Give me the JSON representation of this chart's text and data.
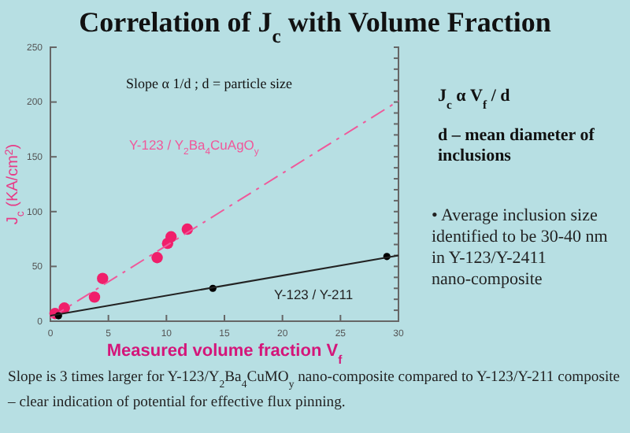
{
  "chart_data": {
    "type": "scatter",
    "title": "Correlation of J$_{c}$ with Volume Fraction",
    "xlabel": "Measured volume fraction  V$_{f}$",
    "ylabel": "J$_{c}$ (KA/cm$^{2}$)",
    "xlim": [
      0,
      30
    ],
    "xticks": [
      0,
      5,
      10,
      15,
      20,
      25,
      30
    ],
    "ylim": [
      0,
      250
    ],
    "yticks": [
      0,
      50,
      100,
      150,
      200,
      250
    ],
    "grid": false,
    "marker": "circle",
    "series": [
      {
        "color": "#f01f6b",
        "x": [
          0.4,
          1.2,
          3.8,
          4.5,
          9.2,
          10.1,
          10.4,
          11.8
        ],
        "values": [
          7,
          12,
          22,
          39,
          58,
          71,
          77,
          84
        ]
      },
      {
        "type": "line",
        "name": "Y-123 / Y$_{2}$Ba$_{4}$CuAgO$_{y}$",
        "color": "#f0589a",
        "line_style": "dashed",
        "marker": "none",
        "x": [
          0,
          30
        ],
        "values": [
          3,
          201
        ]
      },
      {
        "color": "#000000",
        "x": [
          0.7,
          14,
          29
        ],
        "values": [
          5,
          30,
          59
        ]
      },
      {
        "type": "line",
        "name": "Y-123 / Y-211",
        "color": "#222222",
        "line_style": "solid",
        "marker": "none",
        "x": [
          0,
          30
        ],
        "values": [
          5,
          60
        ]
      }
    ],
    "annotations": [
      "Slope  α 1/d ; d = particle size",
      "J$_{c}$ α V$_{f}$ / d",
      "d – mean diameter of inclusions",
      "• Average inclusion size identified to be 30-40 nm in Y-123/Y-2411  nano-composite",
      "Slope is 3 times larger for Y-123/Y$_{2}$Ba$_{4}$CuMO$_{y}$ nano-composite compared to Y-123/Y-211 composite – clear indication of potential for effective flux pinning."
    ]
  }
}
